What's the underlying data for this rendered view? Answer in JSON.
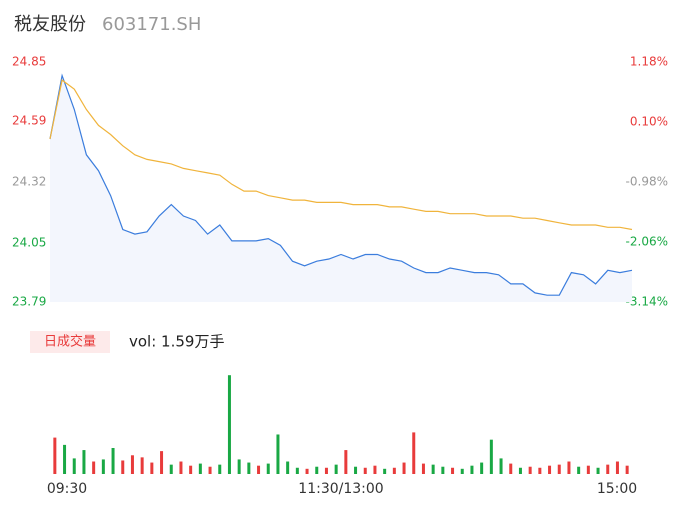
{
  "chart_data": {
    "type": "intraday",
    "title": "税友股份",
    "subtitle": "603171.SH",
    "xlim": [
      0,
      240
    ],
    "xticks": [
      {
        "value": 0,
        "label": "09:30"
      },
      {
        "value": 120,
        "label": "11:30/13:00"
      },
      {
        "value": 240,
        "label": "15:00"
      }
    ],
    "ylim": [
      23.79,
      24.85
    ],
    "yticks": [
      {
        "value": 23.79,
        "color": "#19a844"
      },
      {
        "value": 24.05,
        "color": "#19a844"
      },
      {
        "value": 24.32,
        "color": "#999999"
      },
      {
        "value": 24.59,
        "color": "#e83b3b"
      },
      {
        "value": 24.85,
        "color": "#e83b3b"
      }
    ],
    "y2lim": [
      -3.14,
      1.18
    ],
    "y2ticks": [
      {
        "value": -3.14,
        "label": "-3.14%",
        "color": "#19a844"
      },
      {
        "value": -2.06,
        "label": "-2.06%",
        "color": "#19a844"
      },
      {
        "value": -0.98,
        "label": "-0.98%",
        "color": "#999999"
      },
      {
        "value": 0.1,
        "label": "0.10%",
        "color": "#e83b3b"
      },
      {
        "value": 1.18,
        "label": "1.18%",
        "color": "#e83b3b"
      }
    ],
    "x": [
      0,
      5,
      10,
      15,
      20,
      25,
      30,
      35,
      40,
      45,
      50,
      55,
      60,
      65,
      70,
      75,
      80,
      85,
      90,
      95,
      100,
      105,
      110,
      115,
      120,
      125,
      130,
      135,
      140,
      145,
      150,
      155,
      160,
      165,
      170,
      175,
      180,
      185,
      190,
      195,
      200,
      205,
      210,
      215,
      220,
      225,
      230,
      235,
      240
    ],
    "series": [
      {
        "name": "price",
        "color": "#3b7ddd",
        "values": [
          24.51,
          24.79,
          24.64,
          24.44,
          24.37,
          24.26,
          24.11,
          24.09,
          24.1,
          24.17,
          24.22,
          24.17,
          24.15,
          24.09,
          24.13,
          24.06,
          24.06,
          24.06,
          24.07,
          24.04,
          23.97,
          23.95,
          23.97,
          23.98,
          24.0,
          23.98,
          24.0,
          24.0,
          23.98,
          23.97,
          23.94,
          23.92,
          23.92,
          23.94,
          23.93,
          23.92,
          23.92,
          23.91,
          23.87,
          23.87,
          23.83,
          23.82,
          23.82,
          23.92,
          23.91,
          23.87,
          23.93,
          23.92,
          23.93
        ]
      },
      {
        "name": "average",
        "color": "#f0b43c",
        "values": [
          24.51,
          24.77,
          24.73,
          24.64,
          24.57,
          24.53,
          24.48,
          24.44,
          24.42,
          24.41,
          24.4,
          24.38,
          24.37,
          24.36,
          24.35,
          24.31,
          24.28,
          24.28,
          24.26,
          24.25,
          24.24,
          24.24,
          24.23,
          24.23,
          24.23,
          24.22,
          24.22,
          24.22,
          24.21,
          24.21,
          24.2,
          24.19,
          24.19,
          24.18,
          24.18,
          24.18,
          24.17,
          24.17,
          24.17,
          24.16,
          24.16,
          24.15,
          24.14,
          24.13,
          24.13,
          24.13,
          24.12,
          24.12,
          24.11
        ]
      }
    ],
    "volume": {
      "label": "日成交量",
      "summary": "vol: 1.59万手",
      "ylim": [
        0,
        1000
      ],
      "x": [
        2,
        6,
        10,
        14,
        18,
        22,
        26,
        30,
        34,
        38,
        42,
        46,
        50,
        54,
        58,
        62,
        66,
        70,
        74,
        78,
        82,
        86,
        90,
        94,
        98,
        102,
        106,
        110,
        114,
        118,
        122,
        126,
        130,
        134,
        138,
        142,
        146,
        150,
        154,
        158,
        162,
        166,
        170,
        174,
        178,
        182,
        186,
        190,
        194,
        198,
        202,
        206,
        210,
        214,
        218,
        222,
        226,
        230,
        234,
        238
      ],
      "values": [
        350,
        280,
        150,
        230,
        120,
        140,
        250,
        130,
        180,
        160,
        110,
        220,
        90,
        120,
        80,
        100,
        70,
        90,
        950,
        140,
        110,
        80,
        100,
        380,
        120,
        60,
        50,
        70,
        60,
        90,
        230,
        70,
        60,
        80,
        50,
        60,
        110,
        400,
        100,
        90,
        70,
        60,
        50,
        80,
        110,
        330,
        150,
        100,
        60,
        70,
        60,
        80,
        90,
        120,
        70,
        80,
        60,
        90,
        120,
        80
      ],
      "colors": [
        "#e83b3b",
        "#19a844",
        "#19a844",
        "#19a844",
        "#e83b3b",
        "#19a844",
        "#19a844",
        "#e83b3b",
        "#e83b3b",
        "#e83b3b",
        "#e83b3b",
        "#e83b3b",
        "#19a844",
        "#e83b3b",
        "#e83b3b",
        "#19a844",
        "#e83b3b",
        "#19a844",
        "#19a844",
        "#19a844",
        "#19a844",
        "#e83b3b",
        "#19a844",
        "#19a844",
        "#19a844",
        "#19a844",
        "#e83b3b",
        "#19a844",
        "#e83b3b",
        "#19a844",
        "#e83b3b",
        "#19a844",
        "#e83b3b",
        "#e83b3b",
        "#19a844",
        "#e83b3b",
        "#e83b3b",
        "#e83b3b",
        "#e83b3b",
        "#19a844",
        "#19a844",
        "#e83b3b",
        "#19a844",
        "#19a844",
        "#19a844",
        "#19a844",
        "#19a844",
        "#e83b3b",
        "#19a844",
        "#e83b3b",
        "#e83b3b",
        "#e83b3b",
        "#e83b3b",
        "#e83b3b",
        "#19a844",
        "#e83b3b",
        "#19a844",
        "#e83b3b",
        "#e83b3b",
        "#e83b3b"
      ]
    }
  }
}
